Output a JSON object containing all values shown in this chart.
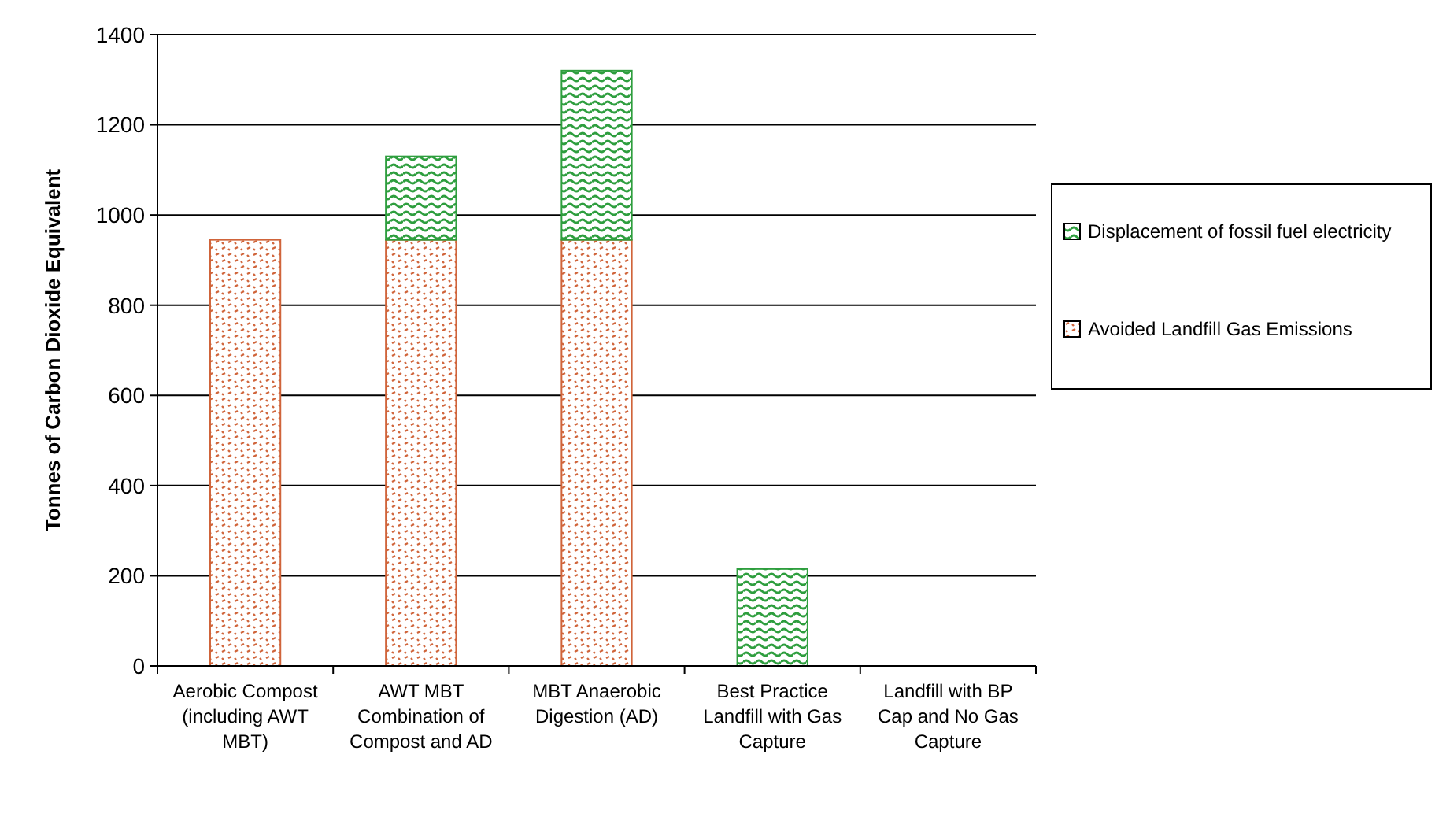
{
  "chart_data": {
    "type": "bar",
    "stacked": true,
    "ylabel": "Tonnes of Carbon Dioxide Equivalent",
    "categories": [
      "Aerobic Compost (including AWT MBT)",
      "AWT MBT Combination of Compost and AD",
      "MBT Anaerobic Digestion (AD)",
      "Best Practice Landfill with Gas Capture",
      "Landfill with BP Cap and No Gas Capture"
    ],
    "series": [
      {
        "name": "Avoided Landfill Gas Emissions",
        "color": "#d0643a",
        "values": [
          945,
          945,
          945,
          0,
          0
        ]
      },
      {
        "name": "Displacement of fossil fuel electricity",
        "color": "#2e9e3e",
        "values": [
          0,
          185,
          375,
          215,
          0
        ]
      }
    ],
    "ylim": [
      0,
      1400
    ],
    "yticks": [
      0,
      200,
      400,
      600,
      800,
      1000,
      1200,
      1400
    ],
    "grid": "y",
    "legend": "right"
  }
}
